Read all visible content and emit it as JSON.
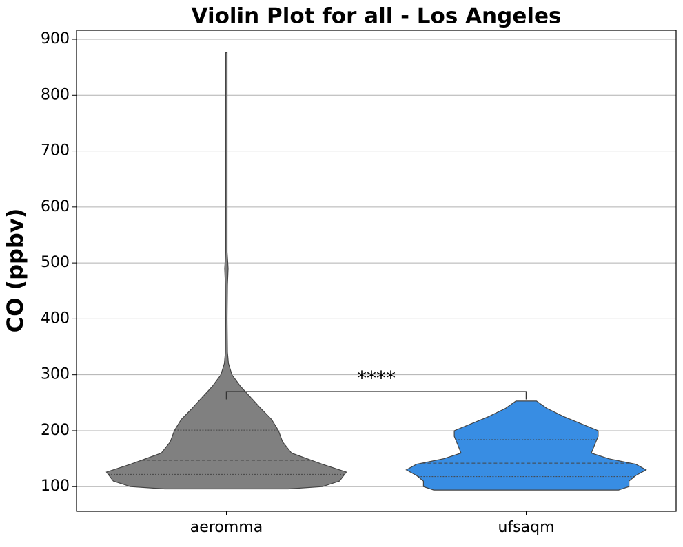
{
  "chart_data": {
    "type": "violin",
    "title": "Violin Plot for all - Los Angeles",
    "ylabel": "CO (ppbv)",
    "categories": [
      "aeromma",
      "ufsaqm"
    ],
    "ylim": [
      56,
      916
    ],
    "yticks": [
      100,
      200,
      300,
      400,
      500,
      600,
      700,
      800,
      900
    ],
    "grid": true,
    "violins": [
      {
        "color": "#808080",
        "min": 96,
        "q1": 122,
        "median": 147,
        "q3": 201,
        "max": 876,
        "density": {
          "y": [
            96,
            100,
            110,
            126,
            140,
            160,
            180,
            200,
            220,
            240,
            260,
            280,
            300,
            320,
            340,
            400,
            460,
            490,
            520,
            600,
            876
          ],
          "width": [
            90,
            140,
            165,
            175,
            140,
            95,
            82,
            76,
            66,
            50,
            35,
            20,
            8,
            3,
            1.5,
            1,
            1.5,
            2.5,
            1,
            1,
            1
          ]
        }
      },
      {
        "color": "#388de3",
        "min": 94,
        "q1": 118,
        "median": 142,
        "q3": 184,
        "max": 253,
        "density": {
          "y": [
            94,
            100,
            110,
            120,
            130,
            140,
            150,
            160,
            175,
            190,
            200,
            210,
            225,
            240,
            253
          ],
          "width": [
            135,
            150,
            150,
            160,
            175,
            160,
            120,
            95,
            100,
            105,
            105,
            85,
            55,
            30,
            15
          ]
        }
      }
    ],
    "annotation": {
      "text": "****",
      "bracket_y": 270,
      "bracket_tick_y": 256
    }
  }
}
